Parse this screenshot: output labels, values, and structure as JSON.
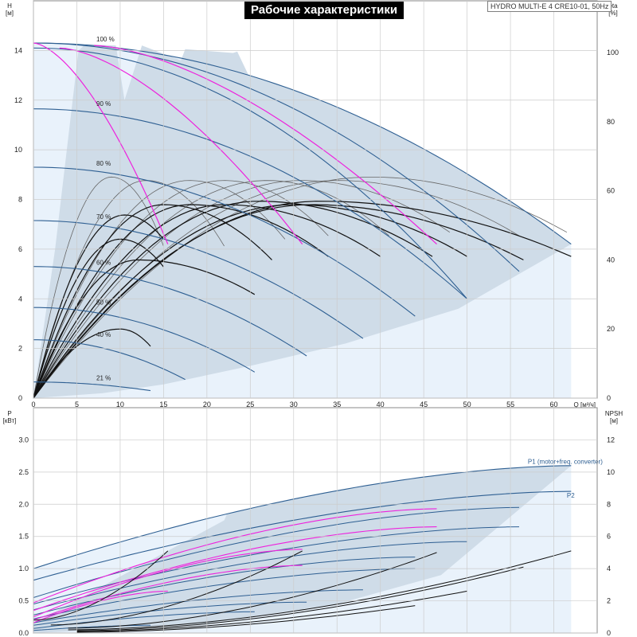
{
  "header": {
    "title": "Рабочие характеристики",
    "model": "HYDRO MULTI-E 4 CRE10-01, 50Hz"
  },
  "colors": {
    "region_dark": "#cfdce8",
    "region_light": "#e9f2fb",
    "curve_blue": "#2e5f92",
    "curve_magenta": "#ee22dd",
    "curve_black": "#111111",
    "curve_gray": "#666666",
    "grid": "#cccccc"
  },
  "chart_data": [
    {
      "type": "line",
      "panel": "head",
      "left_axis": {
        "label": "H",
        "unit": "[м]",
        "ylim": [
          0,
          16
        ],
        "ticks": [
          0,
          2,
          4,
          6,
          8,
          10,
          12,
          14
        ]
      },
      "right_axis": {
        "label": "eta",
        "unit": "[%]",
        "ylim": [
          0,
          115
        ],
        "ticks": [
          0,
          20,
          40,
          60,
          80,
          100
        ]
      },
      "x_axis": {
        "label": "Q",
        "unit": "[м³/ч]",
        "xlim": [
          0,
          65
        ],
        "ticks": [
          0,
          5,
          10,
          15,
          20,
          25,
          30,
          35,
          40,
          45,
          50,
          55,
          60
        ]
      },
      "speed_labels": [
        {
          "text": "100 %",
          "q": 4.5,
          "h": 14.3
        },
        {
          "text": "90 %",
          "q": 4.5,
          "h": 11.7
        },
        {
          "text": "80 %",
          "q": 4.5,
          "h": 9.3
        },
        {
          "text": "70 %",
          "q": 4.5,
          "h": 7.15
        },
        {
          "text": "60 %",
          "q": 4.5,
          "h": 5.3
        },
        {
          "text": "50 %",
          "q": 4.5,
          "h": 3.7
        },
        {
          "text": "40 %",
          "q": 4.5,
          "h": 2.4
        },
        {
          "text": "21 %",
          "q": 4.5,
          "h": 0.65
        }
      ],
      "head_curves": [
        {
          "speed": "100 %",
          "h0": 14.3,
          "q_end": 62.0,
          "h_end": 6.2
        },
        {
          "speed": "100 %",
          "h0": 14.3,
          "q_end": 56.0,
          "h_end": 5.1
        },
        {
          "speed": "100 %",
          "h0": 14.1,
          "q_end": 50.0,
          "h_end": 4.0
        },
        {
          "speed": "90 %",
          "h0": 11.65,
          "q_end": 50.0,
          "h_end": 4.0
        },
        {
          "speed": "80 %",
          "h0": 9.3,
          "q_end": 44.0,
          "h_end": 3.3
        },
        {
          "speed": "70 %",
          "h0": 7.15,
          "q_end": 38.0,
          "h_end": 2.4
        },
        {
          "speed": "60 %",
          "h0": 5.3,
          "q_end": 31.5,
          "h_end": 1.7
        },
        {
          "speed": "50 %",
          "h0": 3.65,
          "q_end": 25.5,
          "h_end": 1.05
        },
        {
          "speed": "40 %",
          "h0": 2.35,
          "q_end": 17.5,
          "h_end": 0.75
        },
        {
          "speed": "21 %",
          "h0": 0.65,
          "q_end": 13.5,
          "h_end": 0.3
        }
      ],
      "magenta_curves": [
        {
          "q0": 0.0,
          "h0": 14.3,
          "q_end": 15.5,
          "h_end": 6.2
        },
        {
          "q0": 3.0,
          "h0": 14.1,
          "q_end": 31.0,
          "h_end": 6.2
        },
        {
          "q0": 7.0,
          "h0": 14.2,
          "q_end": 46.5,
          "h_end": 6.2
        }
      ],
      "efficiency_curves": [
        {
          "eta_peak": 57.0,
          "q_peak": 33.0,
          "q_end": 62.0,
          "eta_end": 41.0,
          "color": "black"
        },
        {
          "eta_peak": 56.0,
          "q_peak": 32.0,
          "q_end": 56.5,
          "eta_end": 40.0,
          "color": "black"
        },
        {
          "eta_peak": 56.0,
          "q_peak": 30.0,
          "q_end": 50.0,
          "eta_end": 41.0,
          "color": "black"
        },
        {
          "eta_peak": 57.0,
          "q_peak": 26.0,
          "q_end": 46.0,
          "eta_end": 41.0,
          "color": "black"
        },
        {
          "eta_peak": 56.0,
          "q_peak": 22.0,
          "q_end": 40.0,
          "eta_end": 41.0,
          "color": "black"
        },
        {
          "eta_peak": 56.0,
          "q_peak": 18.0,
          "q_end": 34.0,
          "eta_end": 41.0,
          "color": "black"
        },
        {
          "eta_peak": 56.0,
          "q_peak": 15.0,
          "q_end": 27.5,
          "eta_end": 40.0,
          "color": "black"
        },
        {
          "eta_peak": 53.0,
          "q_peak": 10.5,
          "q_end": 15.0,
          "eta_end": 46.0,
          "color": "black"
        },
        {
          "eta_peak": 46.0,
          "q_peak": 10.0,
          "q_end": 15.0,
          "eta_end": 38.0,
          "color": "black"
        },
        {
          "eta_peak": 40.0,
          "q_peak": 12.0,
          "q_end": 25.5,
          "eta_end": 30.0,
          "color": "black"
        },
        {
          "eta_peak": 20.0,
          "q_peak": 10.0,
          "q_end": 13.5,
          "eta_end": 15.0,
          "color": "black"
        },
        {
          "eta_peak": 64.0,
          "q_peak": 9.0,
          "q_end": 15.0,
          "eta_end": 44.0,
          "color": "gray"
        },
        {
          "eta_peak": 63.0,
          "q_peak": 13.0,
          "q_end": 22.0,
          "eta_end": 44.0,
          "color": "gray"
        },
        {
          "eta_peak": 63.0,
          "q_peak": 18.0,
          "q_end": 29.0,
          "eta_end": 46.0,
          "color": "gray"
        },
        {
          "eta_peak": 63.0,
          "q_peak": 22.0,
          "q_end": 34.0,
          "eta_end": 47.0,
          "color": "gray"
        },
        {
          "eta_peak": 63.0,
          "q_peak": 27.0,
          "q_end": 41.0,
          "eta_end": 47.0,
          "color": "gray"
        },
        {
          "eta_peak": 63.0,
          "q_peak": 31.0,
          "q_end": 48.0,
          "eta_end": 48.0,
          "color": "gray"
        },
        {
          "eta_peak": 63.0,
          "q_peak": 35.0,
          "q_end": 56.0,
          "eta_end": 47.0,
          "color": "gray"
        },
        {
          "eta_peak": 64.0,
          "q_peak": 39.0,
          "q_end": 61.5,
          "eta_end": 48.0,
          "color": "gray"
        }
      ]
    },
    {
      "type": "line",
      "panel": "power",
      "left_axis": {
        "label": "P",
        "unit": "[кВт]",
        "ylim": [
          0,
          3.5
        ],
        "ticks": [
          0.0,
          0.5,
          1.0,
          1.5,
          2.0,
          2.5,
          3.0
        ]
      },
      "right_axis": {
        "label": "NPSH",
        "unit": "[м]",
        "ylim": [
          0,
          14
        ],
        "ticks": [
          0,
          2,
          4,
          6,
          8,
          10,
          12
        ]
      },
      "x_axis": {
        "xlim": [
          0,
          65
        ]
      },
      "annotations": [
        {
          "text": "P1 (motor+freq. converter)",
          "q": 57.0,
          "p": 2.63
        },
        {
          "text": "P2",
          "q": 61.5,
          "p": 2.1
        }
      ],
      "p1_upper": {
        "p0": 1.0,
        "q_end": 62.0,
        "p_end": 2.6
      },
      "p2_upper": {
        "p0": 0.82,
        "q_end": 62.0,
        "p_end": 2.2
      },
      "blue_curves": [
        {
          "p0": 0.55,
          "q_end": 56.0,
          "p_end": 1.95
        },
        {
          "p0": 0.45,
          "q_end": 56.0,
          "p_end": 1.65
        },
        {
          "p0": 0.36,
          "q_end": 50.0,
          "p_end": 1.42
        },
        {
          "p0": 0.28,
          "q_end": 44.0,
          "p_end": 1.18
        },
        {
          "p0": 0.22,
          "q_end": 44.0,
          "p_end": 1.0
        },
        {
          "p0": 0.16,
          "q_end": 38.0,
          "p_end": 0.67
        },
        {
          "p0": 0.12,
          "q_end": 31.5,
          "p_end": 0.48
        },
        {
          "p0": 0.07,
          "q_end": 25.5,
          "p_end": 0.33
        },
        {
          "p0": 0.04,
          "q_end": 13.5,
          "p_end": 0.12
        }
      ],
      "magenta_curves": [
        {
          "p0": 0.47,
          "q_end": 46.5,
          "p_end": 1.93
        },
        {
          "p0": 0.35,
          "q_end": 46.5,
          "p_end": 1.65
        },
        {
          "p0": 0.25,
          "q_end": 31.0,
          "p_end": 1.3
        },
        {
          "p0": 0.2,
          "q_end": 31.0,
          "p_end": 1.05
        },
        {
          "p0": 0.16,
          "q_end": 15.5,
          "p_end": 0.65
        }
      ],
      "npsh_curves": [
        {
          "q0": 0.0,
          "n0": 0.8,
          "q_end": 15.5,
          "n_end": 5.1
        },
        {
          "q0": 2.0,
          "n0": 0.5,
          "q_end": 31.0,
          "n_end": 5.1
        },
        {
          "q0": 4.0,
          "n0": 0.3,
          "q_end": 46.5,
          "n_end": 5.0
        },
        {
          "q0": 4.0,
          "n0": 0.2,
          "q_end": 62.0,
          "n_end": 5.1
        },
        {
          "q0": 5.0,
          "n0": 0.15,
          "q_end": 56.5,
          "n_end": 4.1
        },
        {
          "q0": 5.0,
          "n0": 0.1,
          "q_end": 50.0,
          "n_end": 2.6
        },
        {
          "q0": 5.0,
          "n0": 0.05,
          "q_end": 44.0,
          "n_end": 1.7
        }
      ]
    }
  ]
}
